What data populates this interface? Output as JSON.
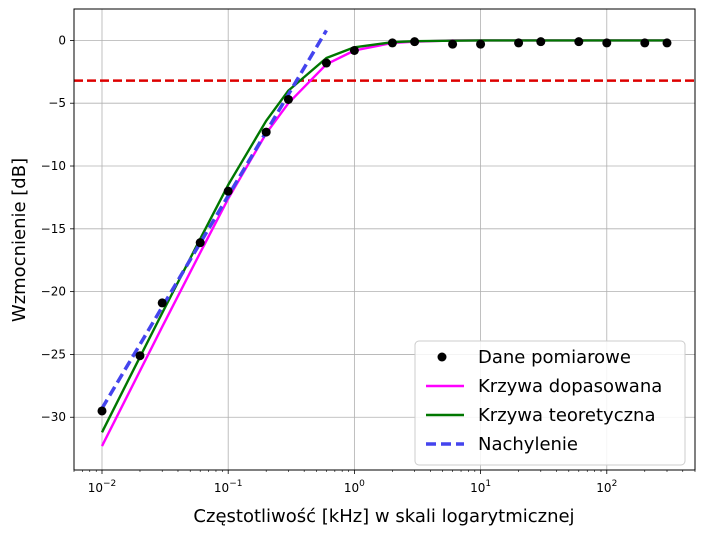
{
  "chart_data": {
    "type": "line",
    "x_scale": "log",
    "xlim": [
      0.006,
      500
    ],
    "ylim": [
      -34.2,
      2.5
    ],
    "xlabel": "Częstotliwość [kHz] w skali logarytmicznej",
    "ylabel": "Wzmocnienie [dB]",
    "x_ticks": [
      0.01,
      0.1,
      1,
      10,
      100
    ],
    "x_tick_labels": [
      {
        "base": "10",
        "exp": "−2"
      },
      {
        "base": "10",
        "exp": "−1"
      },
      {
        "base": "10",
        "exp": "0"
      },
      {
        "base": "10",
        "exp": "1"
      },
      {
        "base": "10",
        "exp": "2"
      }
    ],
    "y_ticks": [
      0,
      -5,
      -10,
      -15,
      -20,
      -25,
      -30
    ],
    "y_tick_labels": [
      "0",
      "−5",
      "−10",
      "−15",
      "−20",
      "−25",
      "−30"
    ],
    "grid": true,
    "hline": {
      "y": -3.2,
      "color": "#dd0000",
      "style": "dashed"
    },
    "legend_position": "bottom-right",
    "series": [
      {
        "name": "Dane pomiarowe",
        "kind": "markers",
        "color": "#000000",
        "x": [
          0.01,
          0.02,
          0.03,
          0.06,
          0.1,
          0.2,
          0.3,
          0.6,
          1,
          2,
          3,
          6,
          10,
          20,
          30,
          60,
          100,
          200,
          300
        ],
        "y": [
          -29.5,
          -25.1,
          -20.9,
          -16.1,
          -12.0,
          -7.3,
          -4.7,
          -1.8,
          -0.8,
          -0.2,
          -0.1,
          -0.3,
          -0.3,
          -0.2,
          -0.1,
          -0.1,
          -0.2,
          -0.2,
          -0.2
        ]
      },
      {
        "name": "Krzywa dopasowana",
        "kind": "line",
        "color": "#ff00ff",
        "x": [
          0.01,
          0.02,
          0.03,
          0.06,
          0.1,
          0.2,
          0.3,
          0.6,
          1,
          2,
          3,
          6,
          10,
          20,
          30,
          60,
          100,
          200,
          300
        ],
        "y": [
          -32.3,
          -26.3,
          -22.8,
          -16.9,
          -12.6,
          -7.4,
          -5.0,
          -1.9,
          -0.8,
          -0.2,
          -0.1,
          0.0,
          0.0,
          0.0,
          0.0,
          0.0,
          0.0,
          0.0,
          0.0
        ]
      },
      {
        "name": "Krzywa teoretyczna",
        "kind": "line",
        "color": "#007700",
        "x": [
          0.01,
          0.02,
          0.03,
          0.06,
          0.1,
          0.2,
          0.3,
          0.6,
          1,
          2,
          3,
          6,
          10,
          20,
          30,
          60,
          100,
          200,
          300
        ],
        "y": [
          -31.2,
          -25.2,
          -21.7,
          -15.8,
          -11.5,
          -6.4,
          -4.0,
          -1.4,
          -0.55,
          -0.14,
          -0.06,
          -0.02,
          0.0,
          0.0,
          0.0,
          0.0,
          0.0,
          0.0,
          0.0
        ]
      },
      {
        "name": "Nachylenie",
        "kind": "dashed",
        "color": "#4444ee",
        "x": [
          0.01,
          0.6
        ],
        "y": [
          -29.3,
          0.8
        ]
      }
    ]
  }
}
